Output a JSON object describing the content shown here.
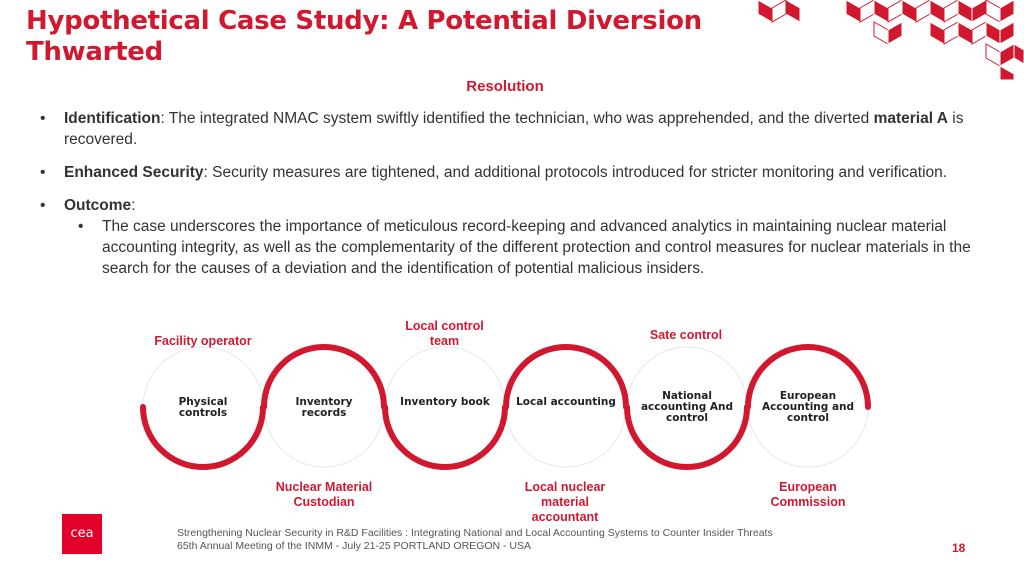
{
  "slide": {
    "title": "Hypothetical Case Study: A Potential Diversion Thwarted",
    "subtitle": "Resolution",
    "page_number": "18"
  },
  "bullets": [
    {
      "bold": "Identification",
      "rest": ": The integrated NMAC system swiftly identified the technician, who was apprehended, and the diverted ",
      "bold2": "material A",
      "rest2": " is recovered."
    },
    {
      "bold": "Enhanced Security",
      "rest": ": Security measures are tightened, and additional protocols introduced for stricter monitoring and verification."
    },
    {
      "bold": "Outcome",
      "rest": ":",
      "sub": "The case underscores the importance of meticulous record-keeping and advanced analytics in maintaining nuclear material accounting integrity, as well as the complementarity of the different protection and control measures for nuclear materials in the search for the causes of a deviation and the identification of potential malicious insiders."
    }
  ],
  "diagram": {
    "top_labels": [
      "Facility operator",
      "Local control team",
      "Sate control"
    ],
    "bottom_labels": [
      "Nuclear Material Custodian",
      "Local nuclear material accountant",
      "European Commission"
    ],
    "nodes": [
      "Physical controls",
      "Inventory records",
      "Inventory book",
      "Local accounting",
      "National accounting And control",
      "European Accounting and control"
    ]
  },
  "footer": {
    "line1": "Strengthening Nuclear Security in R&D Facilities : Integrating National and Local Accounting Systems to Counter Insider Threats",
    "line2": "65th Annual Meeting of the INMM - July 21-25 PORTLAND OREGON - USA"
  },
  "logo": {
    "text": "cea"
  },
  "colors": {
    "accent": "#d1182f",
    "circle_outline": "#e6e6e6"
  }
}
